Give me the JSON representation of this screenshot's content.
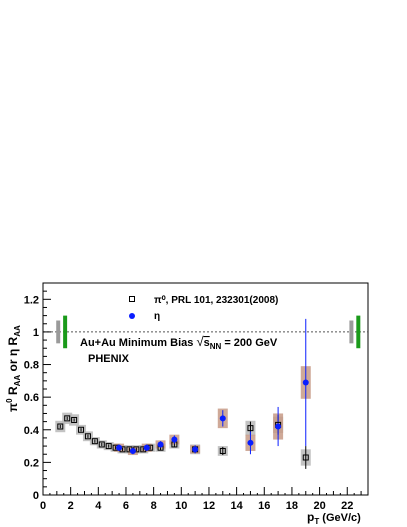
{
  "chart_data": {
    "type": "scatter",
    "xlabel": {
      "main": "p",
      "sub": "T",
      "unit": " (GeV/c)"
    },
    "ylabel": {
      "eta_main": "η R",
      "eta_sub": "AA",
      "or": "or",
      "pi_main": "π",
      "pi_sup": "0",
      "pi_r": " R",
      "pi_sub": "AA"
    },
    "xlim": [
      0,
      23.5
    ],
    "ylim": [
      0,
      1.3
    ],
    "xticks": [
      "0",
      "2",
      "4",
      "6",
      "8",
      "10",
      "12",
      "14",
      "16",
      "18",
      "20",
      "22"
    ],
    "xtick_values": [
      0,
      2,
      4,
      6,
      8,
      10,
      12,
      14,
      16,
      18,
      20,
      22
    ],
    "yticks": [
      "0",
      "0.2",
      "0.4",
      "0.6",
      "0.8",
      "1",
      "1.2"
    ],
    "ytick_values": [
      0,
      0.2,
      0.4,
      0.6,
      0.8,
      1.0,
      1.2
    ],
    "reference_line": 1.0,
    "annotations": {
      "system_prefix": "Au+Au Minimum Bias ",
      "sqrt_symbol": "√",
      "s_label": "s",
      "s_sub": "NN",
      "energy_suffix": " = 200 GeV",
      "experiment": "PHENIX"
    },
    "norm_boxes": [
      {
        "x": 1.1,
        "half_height": 0.07,
        "color": "#9a9a9a"
      },
      {
        "x": 1.6,
        "half_height": 0.1,
        "color": "#1a9a1a"
      },
      {
        "x": 22.3,
        "half_height": 0.07,
        "color": "#9a9a9a"
      },
      {
        "x": 22.8,
        "half_height": 0.1,
        "color": "#1a9a1a"
      }
    ],
    "series": [
      {
        "name": "π⁰, PRL 101, 232301(2008)",
        "marker": "open-square",
        "color": "#000000",
        "sys_color": "#b8b8b8",
        "points": [
          {
            "x": 1.25,
            "y": 0.42,
            "err": 0.01,
            "sys": 0.035
          },
          {
            "x": 1.75,
            "y": 0.47,
            "err": 0.01,
            "sys": 0.035
          },
          {
            "x": 2.25,
            "y": 0.46,
            "err": 0.01,
            "sys": 0.035
          },
          {
            "x": 2.75,
            "y": 0.4,
            "err": 0.01,
            "sys": 0.03
          },
          {
            "x": 3.25,
            "y": 0.36,
            "err": 0.01,
            "sys": 0.03
          },
          {
            "x": 3.75,
            "y": 0.33,
            "err": 0.01,
            "sys": 0.025
          },
          {
            "x": 4.25,
            "y": 0.31,
            "err": 0.01,
            "sys": 0.025
          },
          {
            "x": 4.75,
            "y": 0.3,
            "err": 0.01,
            "sys": 0.025
          },
          {
            "x": 5.25,
            "y": 0.29,
            "err": 0.01,
            "sys": 0.025
          },
          {
            "x": 5.75,
            "y": 0.28,
            "err": 0.01,
            "sys": 0.025
          },
          {
            "x": 6.25,
            "y": 0.28,
            "err": 0.01,
            "sys": 0.025
          },
          {
            "x": 6.75,
            "y": 0.28,
            "err": 0.01,
            "sys": 0.025
          },
          {
            "x": 7.25,
            "y": 0.28,
            "err": 0.01,
            "sys": 0.025
          },
          {
            "x": 7.75,
            "y": 0.29,
            "err": 0.01,
            "sys": 0.025
          },
          {
            "x": 8.5,
            "y": 0.29,
            "err": 0.015,
            "sys": 0.025
          },
          {
            "x": 9.5,
            "y": 0.31,
            "err": 0.015,
            "sys": 0.025
          },
          {
            "x": 11.0,
            "y": 0.28,
            "err": 0.02,
            "sys": 0.03
          },
          {
            "x": 13.0,
            "y": 0.27,
            "err": 0.025,
            "sys": 0.03
          },
          {
            "x": 15.0,
            "y": 0.41,
            "err": 0.04,
            "sys": 0.045
          },
          {
            "x": 17.0,
            "y": 0.43,
            "err": 0.06,
            "sys": 0.05
          },
          {
            "x": 19.0,
            "y": 0.23,
            "err": 0.07,
            "sys": 0.05
          }
        ]
      },
      {
        "name": "η",
        "marker": "filled-circle",
        "color": "#0a1eff",
        "sys_color": "#c79a86",
        "points": [
          {
            "x": 5.5,
            "y": 0.29,
            "err": 0.02,
            "sys": 0.025
          },
          {
            "x": 6.5,
            "y": 0.27,
            "err": 0.02,
            "sys": 0.025
          },
          {
            "x": 7.5,
            "y": 0.29,
            "err": 0.02,
            "sys": 0.025
          },
          {
            "x": 8.5,
            "y": 0.31,
            "err": 0.02,
            "sys": 0.025
          },
          {
            "x": 9.5,
            "y": 0.34,
            "err": 0.025,
            "sys": 0.03
          },
          {
            "x": 11.0,
            "y": 0.28,
            "err": 0.025,
            "sys": 0.025
          },
          {
            "x": 13.0,
            "y": 0.47,
            "err": 0.05,
            "sys": 0.06
          },
          {
            "x": 15.0,
            "y": 0.32,
            "err": 0.07,
            "sys": 0.05
          },
          {
            "x": 17.0,
            "y": 0.42,
            "err": 0.12,
            "sys": 0.08
          },
          {
            "x": 19.0,
            "y": 0.69,
            "err": 0.39,
            "sys": 0.1
          }
        ]
      }
    ]
  }
}
